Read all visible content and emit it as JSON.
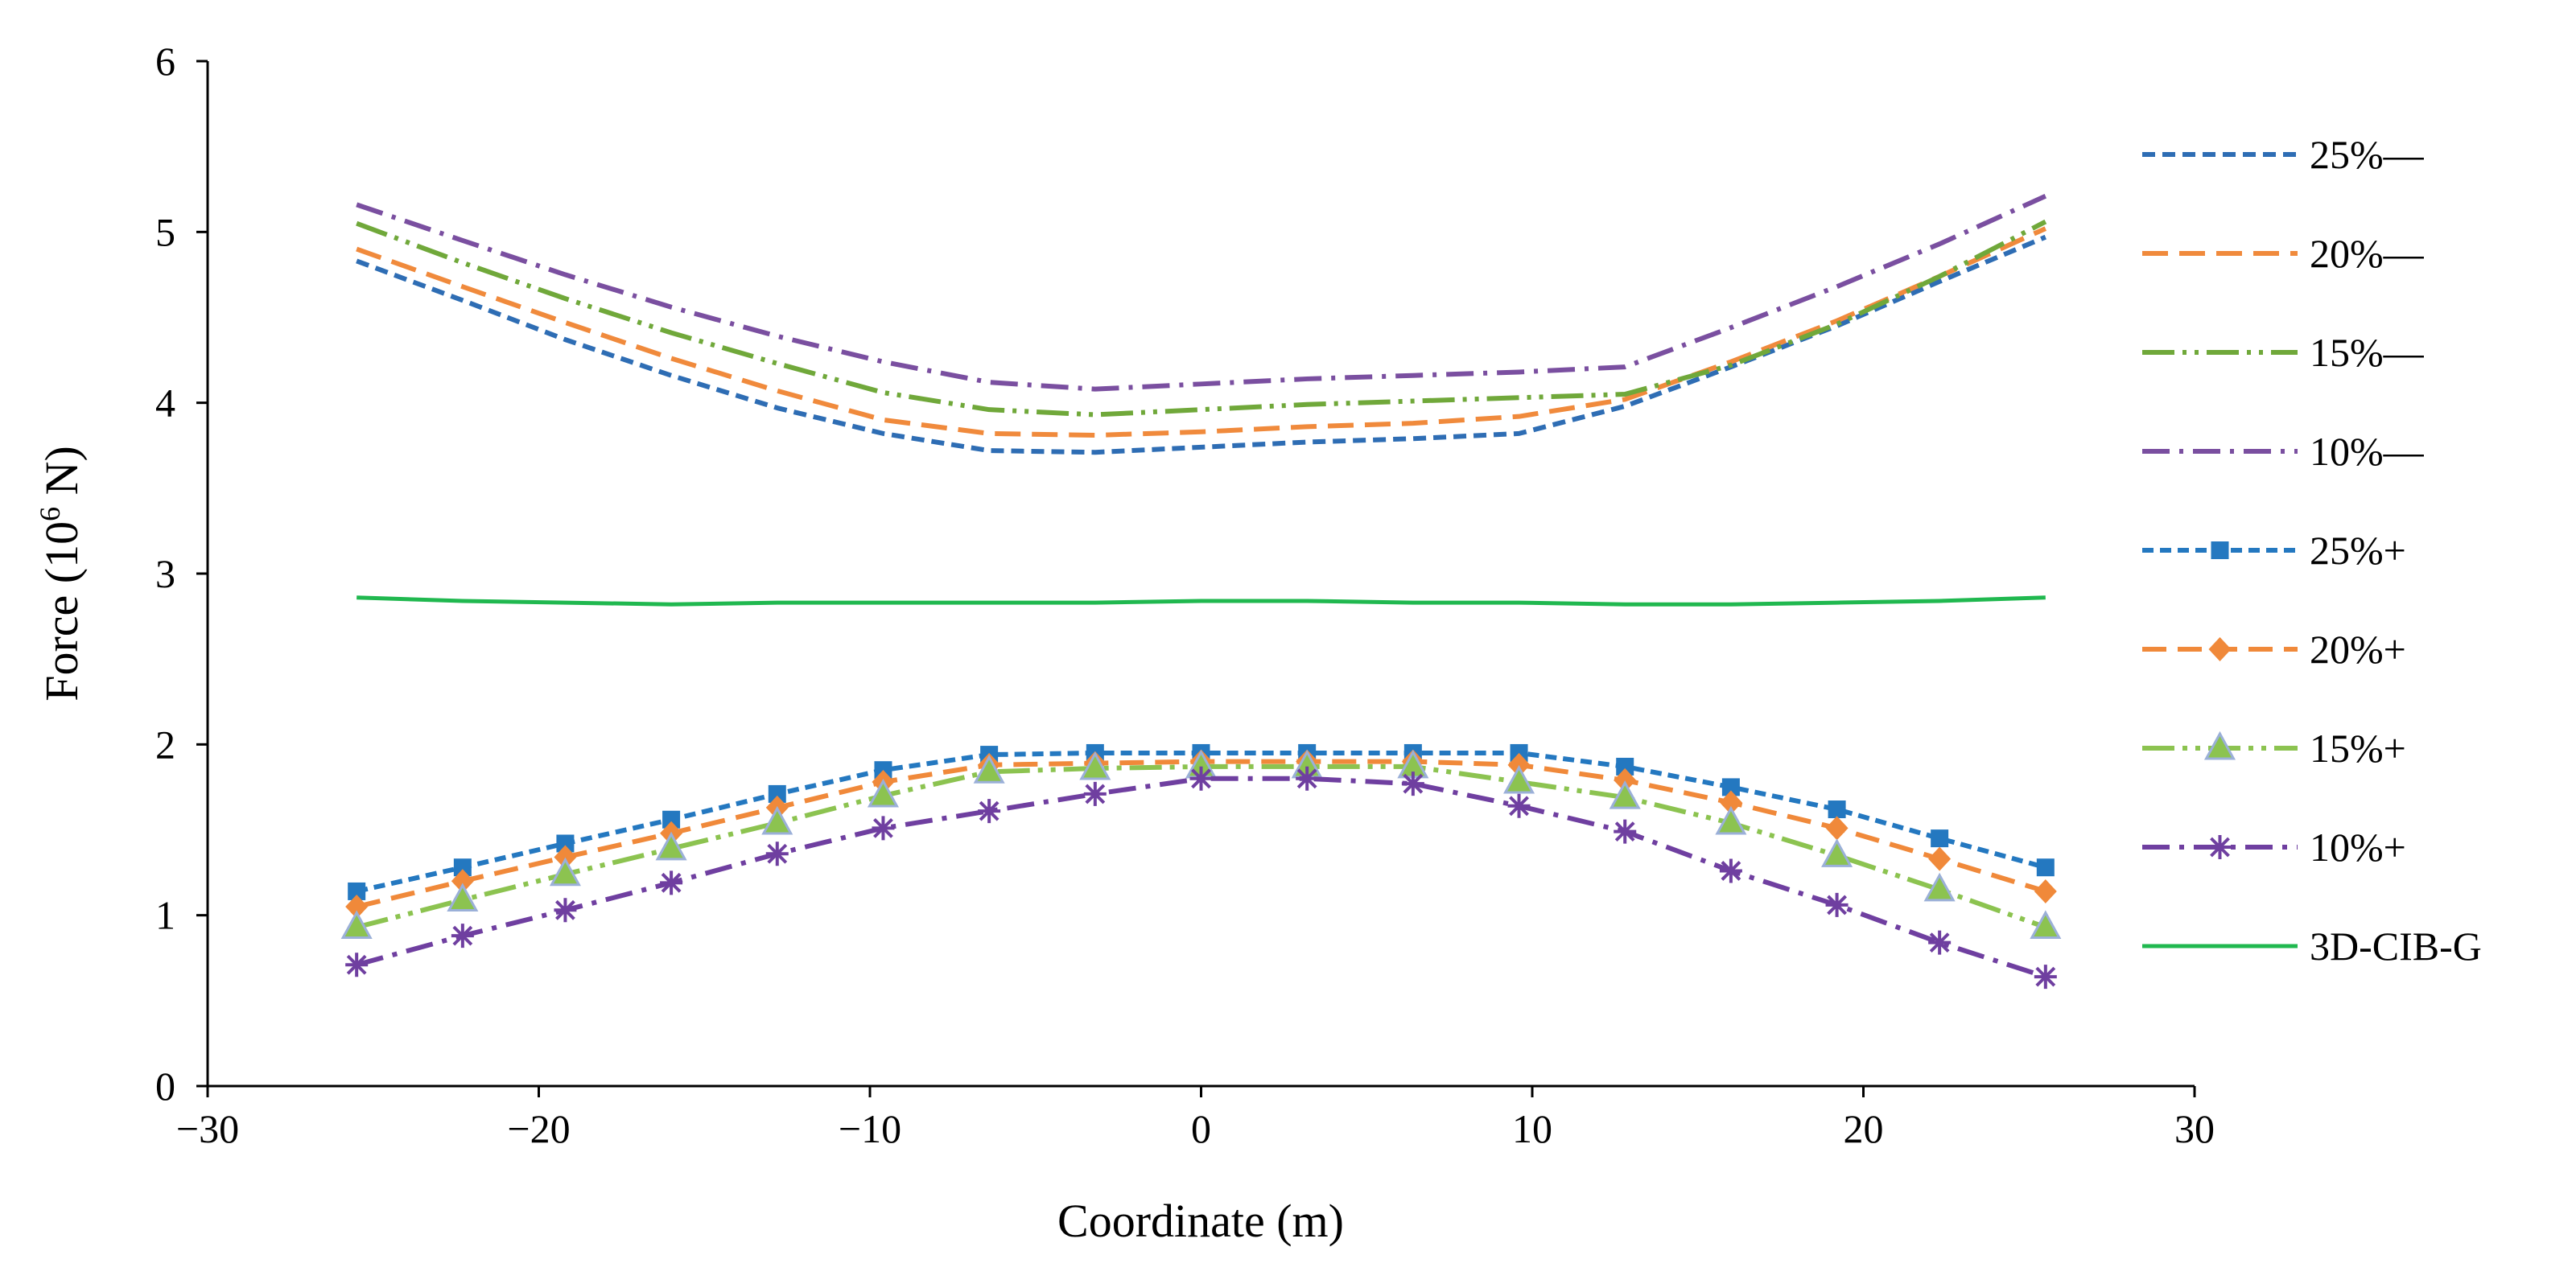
{
  "chart_data": {
    "type": "line",
    "title": "",
    "xlabel": "Coordinate (m)",
    "ylabel_parts": [
      "Force (10",
      "6",
      " N)"
    ],
    "xlim": [
      -30,
      30
    ],
    "ylim": [
      0,
      6
    ],
    "xticks": [
      -30,
      -20,
      -10,
      0,
      10,
      20,
      30
    ],
    "xtick_labels": [
      "−30",
      "−20",
      "−10",
      "0",
      "10",
      "20",
      "30"
    ],
    "yticks": [
      0,
      1,
      2,
      3,
      4,
      5,
      6
    ],
    "ytick_labels": [
      "0",
      "1",
      "2",
      "3",
      "4",
      "5",
      "6"
    ],
    "grid": false,
    "legend_position": "right",
    "x": [
      -25.5,
      -22.3,
      -19.2,
      -16.0,
      -12.8,
      -9.6,
      -6.4,
      -3.2,
      0,
      3.2,
      6.4,
      9.6,
      12.8,
      16.0,
      19.2,
      22.3,
      25.5
    ],
    "series": [
      {
        "name": "25%—",
        "color": "#2e6db4",
        "dash": "16 9",
        "marker": "none",
        "values": [
          4.83,
          4.6,
          4.37,
          4.16,
          3.97,
          3.82,
          3.72,
          3.71,
          3.74,
          3.77,
          3.79,
          3.82,
          3.98,
          4.21,
          4.45,
          4.71,
          4.97
        ]
      },
      {
        "name": "20%—",
        "color": "#f08a3c",
        "dash": "32 14",
        "marker": "none",
        "values": [
          4.9,
          4.68,
          4.47,
          4.26,
          4.07,
          3.9,
          3.82,
          3.81,
          3.83,
          3.86,
          3.88,
          3.92,
          4.02,
          4.24,
          4.48,
          4.74,
          5.02
        ]
      },
      {
        "name": "15%—",
        "color": "#70a83a",
        "dash": "40 10 5 10 5 10",
        "marker": "none",
        "values": [
          5.05,
          4.82,
          4.61,
          4.41,
          4.23,
          4.06,
          3.96,
          3.93,
          3.96,
          3.99,
          4.01,
          4.03,
          4.05,
          4.22,
          4.46,
          4.74,
          5.06
        ]
      },
      {
        "name": "10%—",
        "color": "#7a4fa0",
        "dash": "34 12 5 12",
        "marker": "none",
        "values": [
          5.16,
          4.95,
          4.75,
          4.56,
          4.39,
          4.24,
          4.12,
          4.08,
          4.11,
          4.14,
          4.16,
          4.18,
          4.21,
          4.44,
          4.68,
          4.93,
          5.21
        ]
      },
      {
        "name": "25%+",
        "color": "#2478c0",
        "dash": "14 8",
        "marker": "square",
        "values": [
          1.14,
          1.28,
          1.42,
          1.56,
          1.71,
          1.85,
          1.94,
          1.95,
          1.95,
          1.95,
          1.95,
          1.95,
          1.87,
          1.75,
          1.62,
          1.45,
          1.28
        ]
      },
      {
        "name": "20%+",
        "color": "#f0893a",
        "dash": "30 14",
        "marker": "diamond",
        "values": [
          1.05,
          1.2,
          1.34,
          1.48,
          1.63,
          1.78,
          1.88,
          1.89,
          1.9,
          1.9,
          1.9,
          1.88,
          1.79,
          1.66,
          1.51,
          1.33,
          1.14
        ]
      },
      {
        "name": "15%+",
        "color": "#8cc350",
        "dash": "40 10 6 10 6 10",
        "marker": "triangle",
        "values": [
          0.93,
          1.09,
          1.24,
          1.39,
          1.54,
          1.7,
          1.84,
          1.86,
          1.87,
          1.87,
          1.87,
          1.78,
          1.69,
          1.54,
          1.35,
          1.15,
          0.93
        ]
      },
      {
        "name": "10%+",
        "color": "#6f3fa0",
        "dash": "34 12 6 12",
        "marker": "star",
        "values": [
          0.71,
          0.88,
          1.03,
          1.19,
          1.36,
          1.51,
          1.61,
          1.71,
          1.8,
          1.8,
          1.77,
          1.64,
          1.49,
          1.26,
          1.06,
          0.84,
          0.64
        ]
      },
      {
        "name": "3D-CIB-G",
        "color": "#20b84f",
        "dash": "",
        "marker": "none",
        "values": [
          2.86,
          2.84,
          2.83,
          2.82,
          2.83,
          2.83,
          2.83,
          2.83,
          2.84,
          2.84,
          2.83,
          2.83,
          2.82,
          2.82,
          2.83,
          2.84,
          2.86
        ]
      }
    ]
  }
}
